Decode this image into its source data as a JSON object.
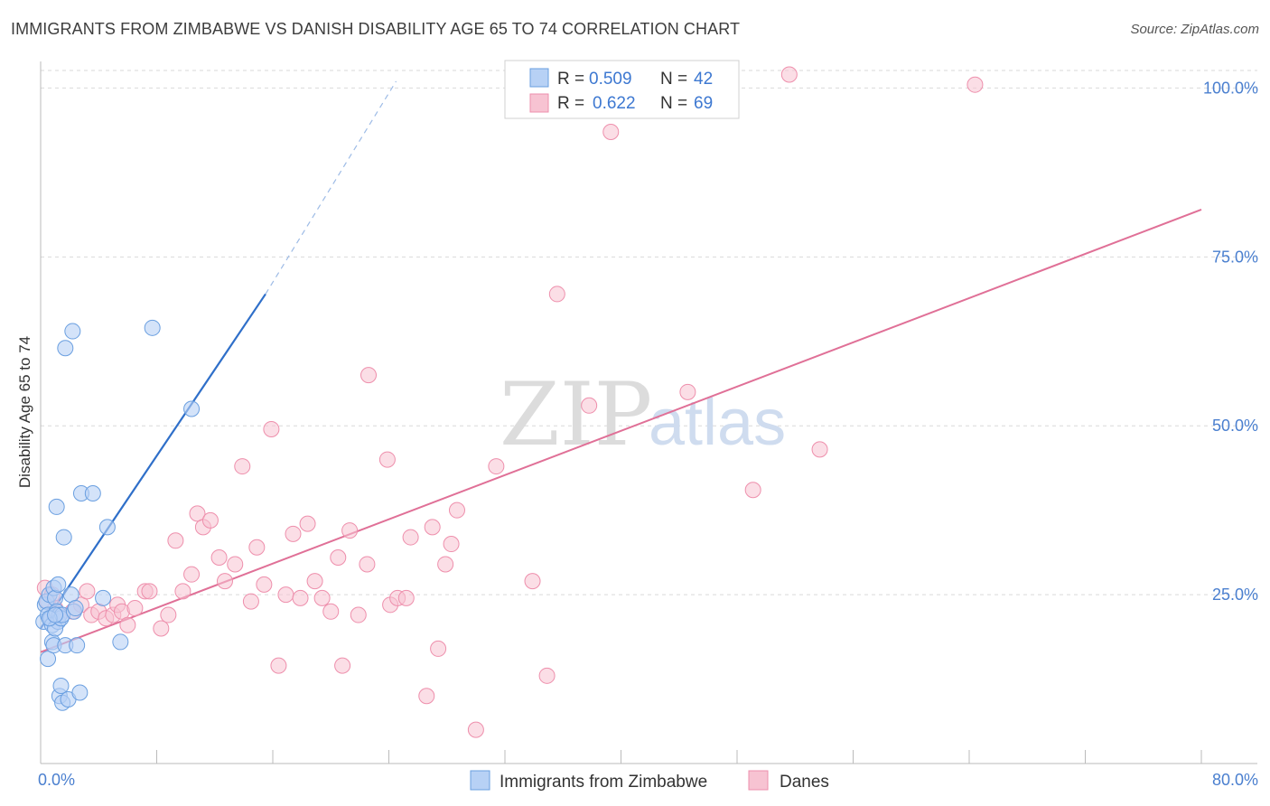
{
  "title": "IMMIGRANTS FROM ZIMBABWE VS DANISH DISABILITY AGE 65 TO 74 CORRELATION CHART",
  "source": "Source: ZipAtlas.com",
  "watermark": {
    "zip": "ZIP",
    "atlas": "atlas"
  },
  "colors": {
    "blue_fill": "#b7d1f5",
    "blue_stroke": "#6a9fe0",
    "blue_line": "#2f6fc9",
    "pink_fill": "#f7c3d2",
    "pink_stroke": "#ee8fac",
    "pink_line": "#e07097",
    "tick_text": "#4a7fcf",
    "grid": "#d9d9d9"
  },
  "legend": {
    "rows": [
      {
        "r_label": "R =",
        "r_value": "0.509",
        "n_label": "N =",
        "n_value": "42"
      },
      {
        "r_label": "R =",
        "r_value": "0.622",
        "n_label": "N =",
        "n_value": "69"
      }
    ]
  },
  "chart_data": {
    "type": "scatter",
    "title": "IMMIGRANTS FROM ZIMBABWE VS DANISH DISABILITY AGE 65 TO 74 CORRELATION CHART",
    "xlabel": "",
    "ylabel": "Disability Age 65 to 74",
    "xlim": [
      0,
      80
    ],
    "ylim": [
      0,
      103
    ],
    "x_tick_labels": [
      "0.0%",
      "80.0%"
    ],
    "y_ticks": [
      25,
      50,
      75,
      100
    ],
    "y_tick_labels": [
      "25.0%",
      "50.0%",
      "75.0%",
      "100.0%"
    ],
    "series": [
      {
        "name": "Immigrants from Zimbabwe",
        "color": "blue",
        "R": 0.509,
        "N": 42,
        "trend": {
          "x0": 0,
          "y0": 20,
          "x1": 15.5,
          "y1": 69.5,
          "dash_x1": 24.5,
          "dash_y1": 101
        },
        "points": [
          [
            0.2,
            21.0
          ],
          [
            0.3,
            23.5
          ],
          [
            0.4,
            24.0
          ],
          [
            0.5,
            22.0
          ],
          [
            0.6,
            25.0
          ],
          [
            0.7,
            21.5
          ],
          [
            0.8,
            20.5
          ],
          [
            0.9,
            26.0
          ],
          [
            1.0,
            24.5
          ],
          [
            1.1,
            22.5
          ],
          [
            1.2,
            21.0
          ],
          [
            0.5,
            15.5
          ],
          [
            0.8,
            18.0
          ],
          [
            0.9,
            17.5
          ],
          [
            1.0,
            20.0
          ],
          [
            1.1,
            38.0
          ],
          [
            1.2,
            26.5
          ],
          [
            1.3,
            22.0
          ],
          [
            1.4,
            21.5
          ],
          [
            1.5,
            22.0
          ],
          [
            1.3,
            10.0
          ],
          [
            1.4,
            11.5
          ],
          [
            1.5,
            9.0
          ],
          [
            1.6,
            33.5
          ],
          [
            1.7,
            61.5
          ],
          [
            1.7,
            17.5
          ],
          [
            1.9,
            9.5
          ],
          [
            2.1,
            25.0
          ],
          [
            2.2,
            64.0
          ],
          [
            2.3,
            22.5
          ],
          [
            2.4,
            23.0
          ],
          [
            2.5,
            17.5
          ],
          [
            2.7,
            10.5
          ],
          [
            2.8,
            40.0
          ],
          [
            3.6,
            40.0
          ],
          [
            4.3,
            24.5
          ],
          [
            4.6,
            35.0
          ],
          [
            5.5,
            18.0
          ],
          [
            7.7,
            64.5
          ],
          [
            10.4,
            52.5
          ],
          [
            0.6,
            21.5
          ],
          [
            1.0,
            22.0
          ]
        ]
      },
      {
        "name": "Danes",
        "color": "pink",
        "R": 0.622,
        "N": 69,
        "trend": {
          "x0": 0,
          "y0": 16.5,
          "x1": 80,
          "y1": 82
        },
        "points": [
          [
            0.3,
            26.0
          ],
          [
            0.5,
            24.0
          ],
          [
            0.8,
            25.0
          ],
          [
            1.0,
            23.0
          ],
          [
            1.3,
            22.0
          ],
          [
            2.2,
            22.5
          ],
          [
            2.8,
            23.5
          ],
          [
            3.2,
            25.5
          ],
          [
            3.5,
            22.0
          ],
          [
            4.0,
            22.5
          ],
          [
            4.5,
            21.5
          ],
          [
            5.0,
            22.0
          ],
          [
            5.3,
            23.5
          ],
          [
            5.6,
            22.5
          ],
          [
            6.0,
            20.5
          ],
          [
            6.5,
            23.0
          ],
          [
            7.2,
            25.5
          ],
          [
            7.5,
            25.5
          ],
          [
            8.3,
            20.0
          ],
          [
            8.8,
            22.0
          ],
          [
            9.3,
            33.0
          ],
          [
            9.8,
            25.5
          ],
          [
            10.4,
            28.0
          ],
          [
            10.8,
            37.0
          ],
          [
            11.2,
            35.0
          ],
          [
            11.7,
            36.0
          ],
          [
            12.3,
            30.5
          ],
          [
            12.7,
            27.0
          ],
          [
            13.4,
            29.5
          ],
          [
            13.9,
            44.0
          ],
          [
            14.5,
            24.0
          ],
          [
            14.9,
            32.0
          ],
          [
            15.4,
            26.5
          ],
          [
            15.9,
            49.5
          ],
          [
            16.4,
            14.5
          ],
          [
            16.9,
            25.0
          ],
          [
            17.4,
            34.0
          ],
          [
            17.9,
            24.5
          ],
          [
            18.4,
            35.5
          ],
          [
            18.9,
            27.0
          ],
          [
            19.4,
            24.5
          ],
          [
            20.0,
            22.5
          ],
          [
            20.5,
            30.5
          ],
          [
            20.8,
            14.5
          ],
          [
            21.3,
            34.5
          ],
          [
            21.9,
            22.0
          ],
          [
            22.5,
            29.5
          ],
          [
            22.6,
            57.5
          ],
          [
            23.9,
            45.0
          ],
          [
            24.1,
            23.5
          ],
          [
            24.6,
            24.5
          ],
          [
            25.2,
            24.5
          ],
          [
            25.5,
            33.5
          ],
          [
            26.6,
            10.0
          ],
          [
            27.0,
            35.0
          ],
          [
            27.4,
            17.0
          ],
          [
            27.9,
            29.5
          ],
          [
            28.3,
            32.5
          ],
          [
            28.7,
            37.5
          ],
          [
            30.0,
            5.0
          ],
          [
            31.4,
            44.0
          ],
          [
            33.9,
            27.0
          ],
          [
            34.9,
            13.0
          ],
          [
            35.6,
            69.5
          ],
          [
            37.8,
            53.0
          ],
          [
            39.3,
            93.5
          ],
          [
            44.6,
            55.0
          ],
          [
            49.1,
            40.5
          ],
          [
            51.6,
            102.0
          ],
          [
            53.7,
            46.5
          ],
          [
            64.4,
            100.5
          ]
        ]
      }
    ]
  }
}
